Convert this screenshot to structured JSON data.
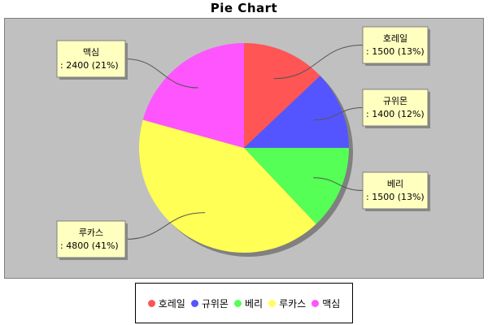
{
  "chart_data": {
    "type": "pie",
    "title": "Pie Chart",
    "slices": [
      {
        "label": "호레일",
        "value": 1500,
        "percent": "13%",
        "color": "#ff5555"
      },
      {
        "label": "규위몬",
        "value": 1400,
        "percent": "12%",
        "color": "#5555ff"
      },
      {
        "label": "베리",
        "value": 1500,
        "percent": "13%",
        "color": "#55ff55"
      },
      {
        "label": "루카스",
        "value": 4800,
        "percent": "41%",
        "color": "#ffff55"
      },
      {
        "label": "맥심",
        "value": 2400,
        "percent": "21%",
        "color": "#ff55ff"
      }
    ],
    "legend": "bottom",
    "background": "#c0c0c0"
  }
}
